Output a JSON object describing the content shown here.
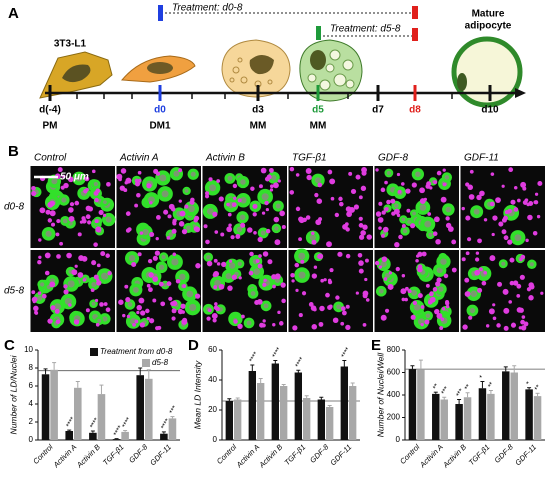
{
  "panel_a": {
    "label": "A",
    "cell_line": "3T3-L1",
    "treatment_1": "Treatment: d0-8",
    "treatment_2": "Treatment: d5-8",
    "mature_label": [
      "Mature",
      "adipocyte"
    ],
    "days": [
      "d(-4)",
      "d0",
      "d3",
      "d5",
      "d7",
      "d8",
      "d10"
    ],
    "stages": [
      "PM",
      "DM1",
      "MM",
      "MM"
    ]
  },
  "panel_b": {
    "label": "B",
    "columns": [
      "Control",
      "Activin A",
      "Activin B",
      "TGF-β1",
      "GDF-8",
      "GDF-11"
    ],
    "rows": [
      "d0-8",
      "d5-8"
    ],
    "scale_bar": "50 μm"
  },
  "chart_data": [
    {
      "type": "bar",
      "panel_label": "C",
      "y_label": "Number of LD/Nuclei",
      "categories": [
        "Control",
        "Activin A",
        "Activin B",
        "TGF-β1",
        "GDF-8",
        "GDF-11"
      ],
      "ylim": [
        0,
        10
      ],
      "yticks": [
        0,
        2,
        4,
        6,
        8,
        10
      ],
      "reference_line": 7.7,
      "legend": "upper right",
      "series": [
        {
          "name": "Treatment from d0-8",
          "color": "#111111",
          "values": [
            7.3,
            1.0,
            0.8,
            0.1,
            7.2,
            0.7
          ],
          "errors": [
            0.6,
            0.1,
            0.2,
            0.05,
            0.8,
            0.2
          ],
          "annotations": [
            null,
            "****",
            "****",
            "****",
            null,
            "****"
          ]
        },
        {
          "name": "d5-8",
          "color": "#a8a8a8",
          "values": [
            7.8,
            5.8,
            5.1,
            0.9,
            6.8,
            2.4
          ],
          "errors": [
            0.8,
            0.7,
            1.0,
            0.15,
            1.0,
            0.2
          ],
          "annotations": [
            null,
            null,
            null,
            "****",
            null,
            "***"
          ]
        }
      ]
    },
    {
      "type": "bar",
      "panel_label": "D",
      "y_label": "Mean LD Intensity",
      "categories": [
        "Control",
        "Activin A",
        "Activin B",
        "TGF-β1",
        "GDF-8",
        "GDF-11"
      ],
      "ylim": [
        0,
        60
      ],
      "yticks": [
        0,
        20,
        40,
        60
      ],
      "reference_line": 26,
      "series": [
        {
          "color": "#111111",
          "values": [
            26,
            46,
            51,
            45,
            27,
            49
          ],
          "errors": [
            1.5,
            4,
            2,
            1.5,
            1.5,
            4
          ],
          "annotations": [
            null,
            "****",
            "****",
            "****",
            null,
            "****"
          ]
        },
        {
          "color": "#a8a8a8",
          "values": [
            27,
            38,
            36,
            28,
            22,
            36
          ],
          "errors": [
            1,
            3,
            1,
            1.5,
            1,
            2
          ],
          "annotations": [
            null,
            null,
            null,
            null,
            null,
            null
          ]
        }
      ]
    },
    {
      "type": "bar",
      "panel_label": "E",
      "y_label": "Number of Nuclei/Well",
      "categories": [
        "Control",
        "Activin A",
        "Activin B",
        "TGF-β1",
        "GDF-8",
        "GDF-11"
      ],
      "ylim": [
        0,
        800
      ],
      "yticks": [
        0,
        200,
        400,
        600,
        800
      ],
      "reference_line": 630,
      "series": [
        {
          "color": "#111111",
          "values": [
            630,
            410,
            320,
            460,
            610,
            450
          ],
          "errors": [
            30,
            15,
            40,
            60,
            40,
            15
          ],
          "annotations": [
            null,
            "**",
            "***",
            "*",
            null,
            "*"
          ]
        },
        {
          "color": "#a8a8a8",
          "values": [
            630,
            360,
            380,
            410,
            600,
            390
          ],
          "errors": [
            80,
            20,
            40,
            30,
            60,
            25
          ],
          "annotations": [
            null,
            "***",
            "**",
            "**",
            null,
            "**"
          ]
        }
      ]
    }
  ]
}
